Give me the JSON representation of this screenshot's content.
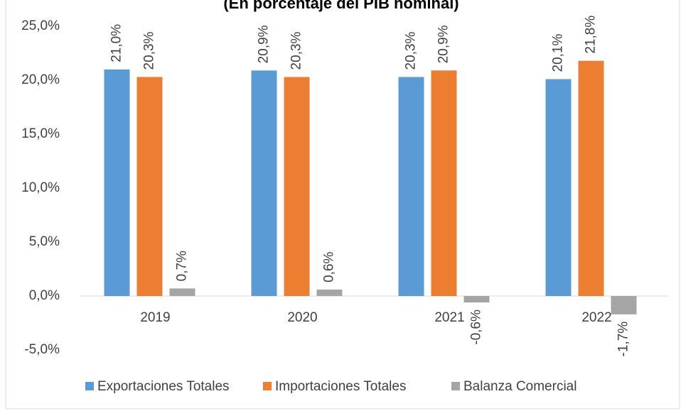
{
  "chart_data": {
    "type": "bar",
    "title": "(En porcentaje del PIB nominal)",
    "categories": [
      "2019",
      "2020",
      "2021",
      "2022"
    ],
    "series": [
      {
        "name": "Exportaciones Totales",
        "color": "#5b9bd5",
        "values": [
          21.0,
          20.9,
          20.3,
          20.1
        ],
        "value_labels": [
          "21,0%",
          "20,9%",
          "20,3%",
          "20,1%"
        ]
      },
      {
        "name": "Importaciones Totales",
        "color": "#ed7d31",
        "values": [
          20.3,
          20.3,
          20.9,
          21.8
        ],
        "value_labels": [
          "20,3%",
          "20,3%",
          "20,9%",
          "21,8%"
        ]
      },
      {
        "name": "Balanza Comercial",
        "color": "#a5a5a5",
        "values": [
          0.7,
          0.6,
          -0.6,
          -1.7
        ],
        "value_labels": [
          "0,7%",
          "0,6%",
          "-0,6%",
          "-1,7%"
        ]
      }
    ],
    "ylim": [
      -5,
      25
    ],
    "yticks": [
      {
        "value": -5,
        "label": "-5,0%"
      },
      {
        "value": 0,
        "label": "0,0%"
      },
      {
        "value": 5,
        "label": "5,0%"
      },
      {
        "value": 10,
        "label": "10,0%"
      },
      {
        "value": 15,
        "label": "15,0%"
      },
      {
        "value": 20,
        "label": "20,0%"
      },
      {
        "value": 25,
        "label": "25,0%"
      }
    ],
    "grid": false,
    "legend": "bottom"
  }
}
